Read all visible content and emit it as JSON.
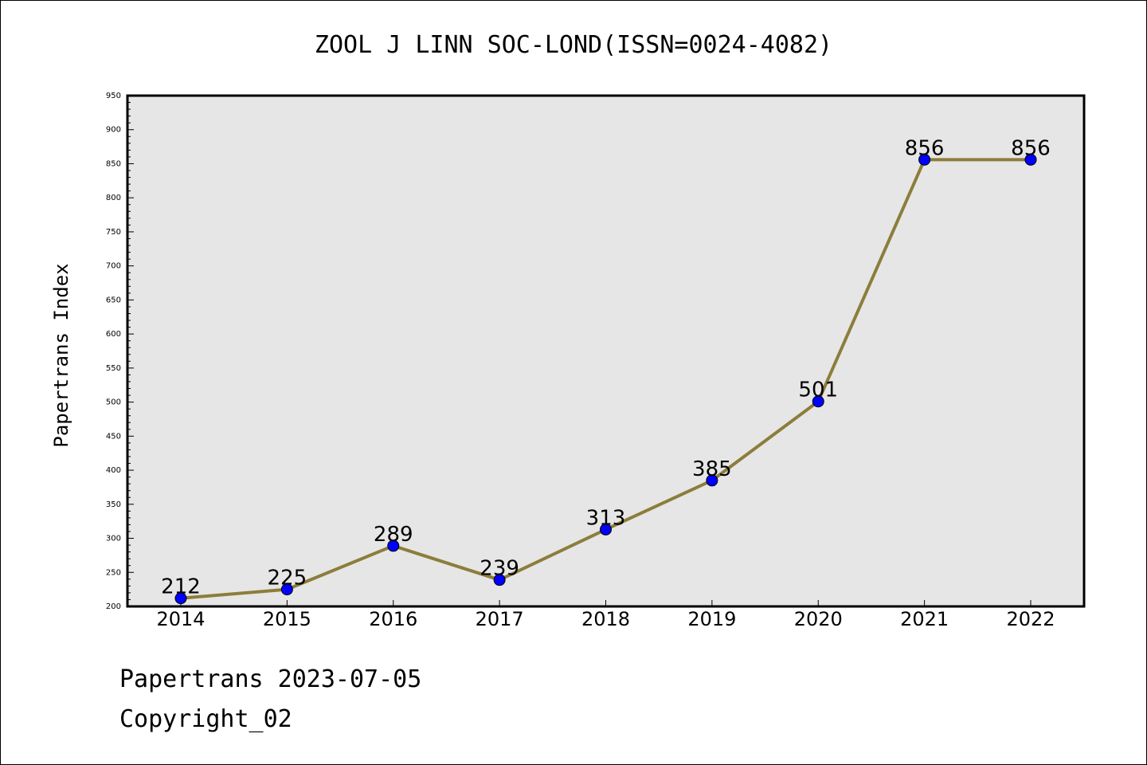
{
  "chart_data": {
    "type": "line",
    "title": "ZOOL J LINN SOC-LOND(ISSN=0024-4082)",
    "xlabel": "",
    "ylabel": "Papertrans Index",
    "categories": [
      "2014",
      "2015",
      "2016",
      "2017",
      "2018",
      "2019",
      "2020",
      "2021",
      "2022"
    ],
    "values": [
      212,
      225,
      289,
      239,
      313,
      385,
      501,
      856,
      856
    ],
    "data_labels": [
      "212",
      "225",
      "289",
      "239",
      "313",
      "385",
      "501",
      "856",
      "856"
    ],
    "ylim": [
      200,
      950
    ],
    "yticks": [
      "200",
      "250",
      "300",
      "350",
      "400",
      "450",
      "500",
      "550",
      "600",
      "650",
      "700",
      "750",
      "800",
      "850",
      "900",
      "950"
    ],
    "grid": false,
    "legend": "none",
    "colors": {
      "line": "#8c7d3c",
      "marker": "#0000ff",
      "plot_bg": "#e6e6e6"
    }
  },
  "footer": {
    "line1": "Papertrans 2023-07-05",
    "line2": "Copyright_02"
  }
}
